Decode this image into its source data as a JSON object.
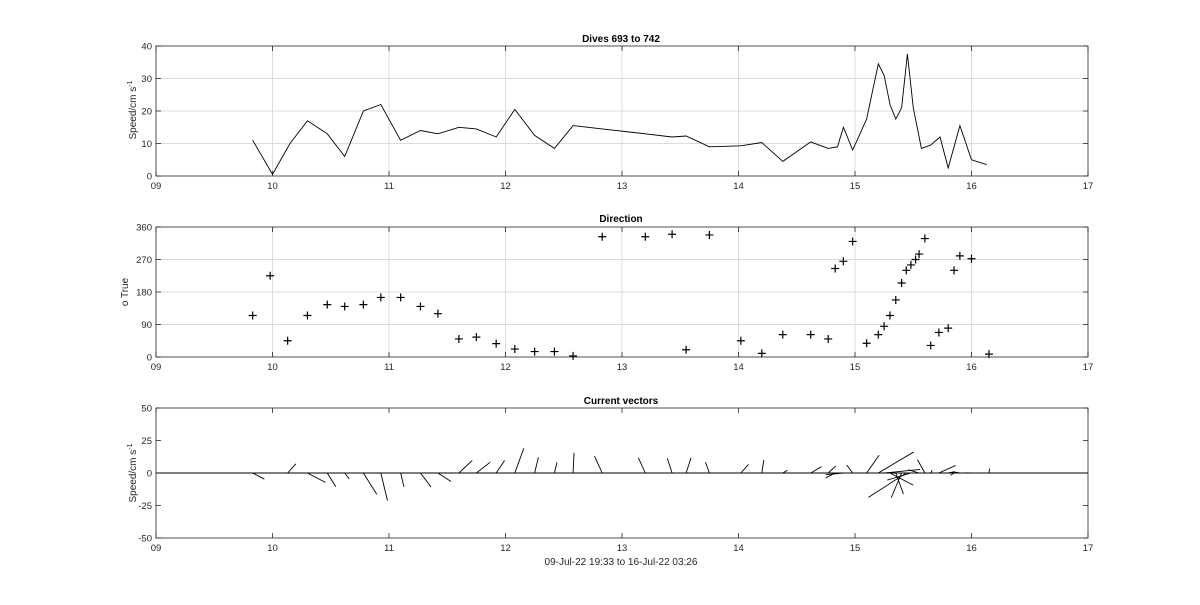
{
  "colors": {
    "axis": "#262626",
    "grid": "#dcdcdc",
    "data": "#000000",
    "background": "#ffffff"
  },
  "chart_data": [
    {
      "type": "line",
      "title": "Dives 693 to 742",
      "ylabel_main": "Speed/cm s",
      "ylabel_sup": "-1",
      "xlabel": "",
      "xlim": [
        9,
        17
      ],
      "ylim": [
        0,
        40
      ],
      "xticks": [
        "09",
        "10",
        "11",
        "12",
        "13",
        "14",
        "15",
        "16",
        "17"
      ],
      "yticks": [
        "0",
        "10",
        "20",
        "30",
        "40"
      ],
      "grid": true,
      "series": [
        {
          "x": [
            9.83,
            10.0,
            10.15,
            10.3,
            10.47,
            10.62,
            10.78,
            10.93,
            11.1,
            11.27,
            11.42,
            11.6,
            11.75,
            11.92,
            12.08,
            12.25,
            12.42,
            12.58,
            12.83,
            13.2,
            13.43,
            13.55,
            13.75,
            14.02,
            14.2,
            14.38,
            14.62,
            14.77,
            14.85,
            14.9,
            14.98,
            15.1,
            15.2,
            15.25,
            15.3,
            15.35,
            15.4,
            15.45,
            15.5,
            15.57,
            15.65,
            15.73,
            15.8,
            15.9,
            16.0,
            16.13
          ],
          "y": [
            11,
            0.5,
            10,
            17,
            13,
            6,
            20,
            22,
            11,
            14,
            13,
            15,
            14.5,
            12,
            20.5,
            12.5,
            8.5,
            15.5,
            14.5,
            13,
            12,
            12.3,
            9,
            9.3,
            10.3,
            4.5,
            10.5,
            8.5,
            9,
            15,
            8,
            17.5,
            34.5,
            31,
            22,
            17.5,
            21,
            37.5,
            21,
            8.5,
            9.5,
            12,
            2.5,
            15.5,
            5,
            3.5
          ]
        }
      ]
    },
    {
      "type": "scatter",
      "title": "Direction",
      "ylabel_main": "o True",
      "xlabel": "",
      "xlim": [
        9,
        17
      ],
      "ylim": [
        0,
        360
      ],
      "xticks": [
        "09",
        "10",
        "11",
        "12",
        "13",
        "14",
        "15",
        "16",
        "17"
      ],
      "yticks": [
        "0",
        "90",
        "180",
        "270",
        "360"
      ],
      "grid": true,
      "series": [
        {
          "x": [
            9.83,
            9.98,
            10.13,
            10.3,
            10.47,
            10.62,
            10.78,
            10.93,
            11.1,
            11.27,
            11.42,
            11.6,
            11.75,
            11.92,
            12.08,
            12.25,
            12.42,
            12.58,
            12.83,
            13.2,
            13.43,
            13.55,
            13.75,
            14.02,
            14.2,
            14.38,
            14.62,
            14.77,
            14.83,
            14.9,
            14.98,
            15.1,
            15.2,
            15.25,
            15.3,
            15.35,
            15.4,
            15.44,
            15.48,
            15.52,
            15.55,
            15.6,
            15.65,
            15.72,
            15.8,
            15.85,
            15.9,
            16.0,
            16.15
          ],
          "y": [
            115,
            225,
            45,
            115,
            145,
            140,
            145,
            165,
            165,
            140,
            120,
            50,
            55,
            37,
            22,
            15,
            15,
            3,
            333,
            333,
            340,
            20,
            338,
            45,
            10,
            62,
            62,
            50,
            245,
            265,
            320,
            38,
            62,
            85,
            115,
            158,
            205,
            240,
            255,
            270,
            285,
            328,
            32,
            68,
            80,
            240,
            280,
            272,
            8
          ]
        }
      ]
    },
    {
      "type": "line",
      "title": "Current vectors",
      "ylabel_main": "Speed/cm s",
      "ylabel_sup": "-1",
      "xlabel": "09-Jul-22 19:33 to 16-Jul-22 03:26",
      "xlim": [
        9,
        17
      ],
      "ylim": [
        -50,
        50
      ],
      "xticks": [
        "09",
        "10",
        "11",
        "12",
        "13",
        "14",
        "15",
        "16",
        "17"
      ],
      "yticks": [
        "-50",
        "-25",
        "0",
        "25",
        "50"
      ],
      "grid": false,
      "vectors": {
        "x0": [
          9.83,
          9.98,
          10.13,
          10.3,
          10.47,
          10.62,
          10.78,
          10.93,
          11.1,
          11.27,
          11.42,
          11.6,
          11.75,
          11.92,
          12.08,
          12.25,
          12.42,
          12.58,
          12.83,
          13.2,
          13.43,
          13.55,
          13.75,
          14.02,
          14.2,
          14.38,
          14.62,
          14.77,
          14.83,
          14.9,
          14.98,
          15.1,
          15.2,
          15.25,
          15.3,
          15.35,
          15.4,
          15.44,
          15.48,
          15.52,
          15.55,
          15.6,
          15.65,
          15.72,
          15.8,
          15.85,
          15.9,
          16.0,
          16.15
        ],
        "angle_deg": [
          115,
          225,
          45,
          115,
          145,
          140,
          145,
          165,
          165,
          140,
          120,
          50,
          55,
          37,
          22,
          15,
          15,
          3,
          333,
          333,
          340,
          20,
          338,
          45,
          10,
          62,
          62,
          50,
          245,
          265,
          320,
          38,
          62,
          85,
          115,
          158,
          205,
          240,
          255,
          270,
          285,
          328,
          32,
          68,
          80,
          240,
          280,
          272,
          8
        ],
        "speed": [
          11,
          0.5,
          10,
          17,
          13,
          6,
          20,
          22,
          11,
          14,
          13,
          15,
          14.5,
          12,
          20.5,
          12.5,
          8.5,
          15.5,
          14.5,
          13,
          12,
          12.3,
          9,
          9.3,
          10.3,
          4.5,
          10.5,
          8.5,
          9,
          15,
          8,
          17.5,
          34.5,
          31,
          22,
          17.5,
          21,
          37.5,
          21,
          8.5,
          9.5,
          12,
          2.5,
          15.5,
          5,
          3.5,
          6,
          5,
          3.5
        ],
        "x_scale": 0.01
      }
    }
  ]
}
